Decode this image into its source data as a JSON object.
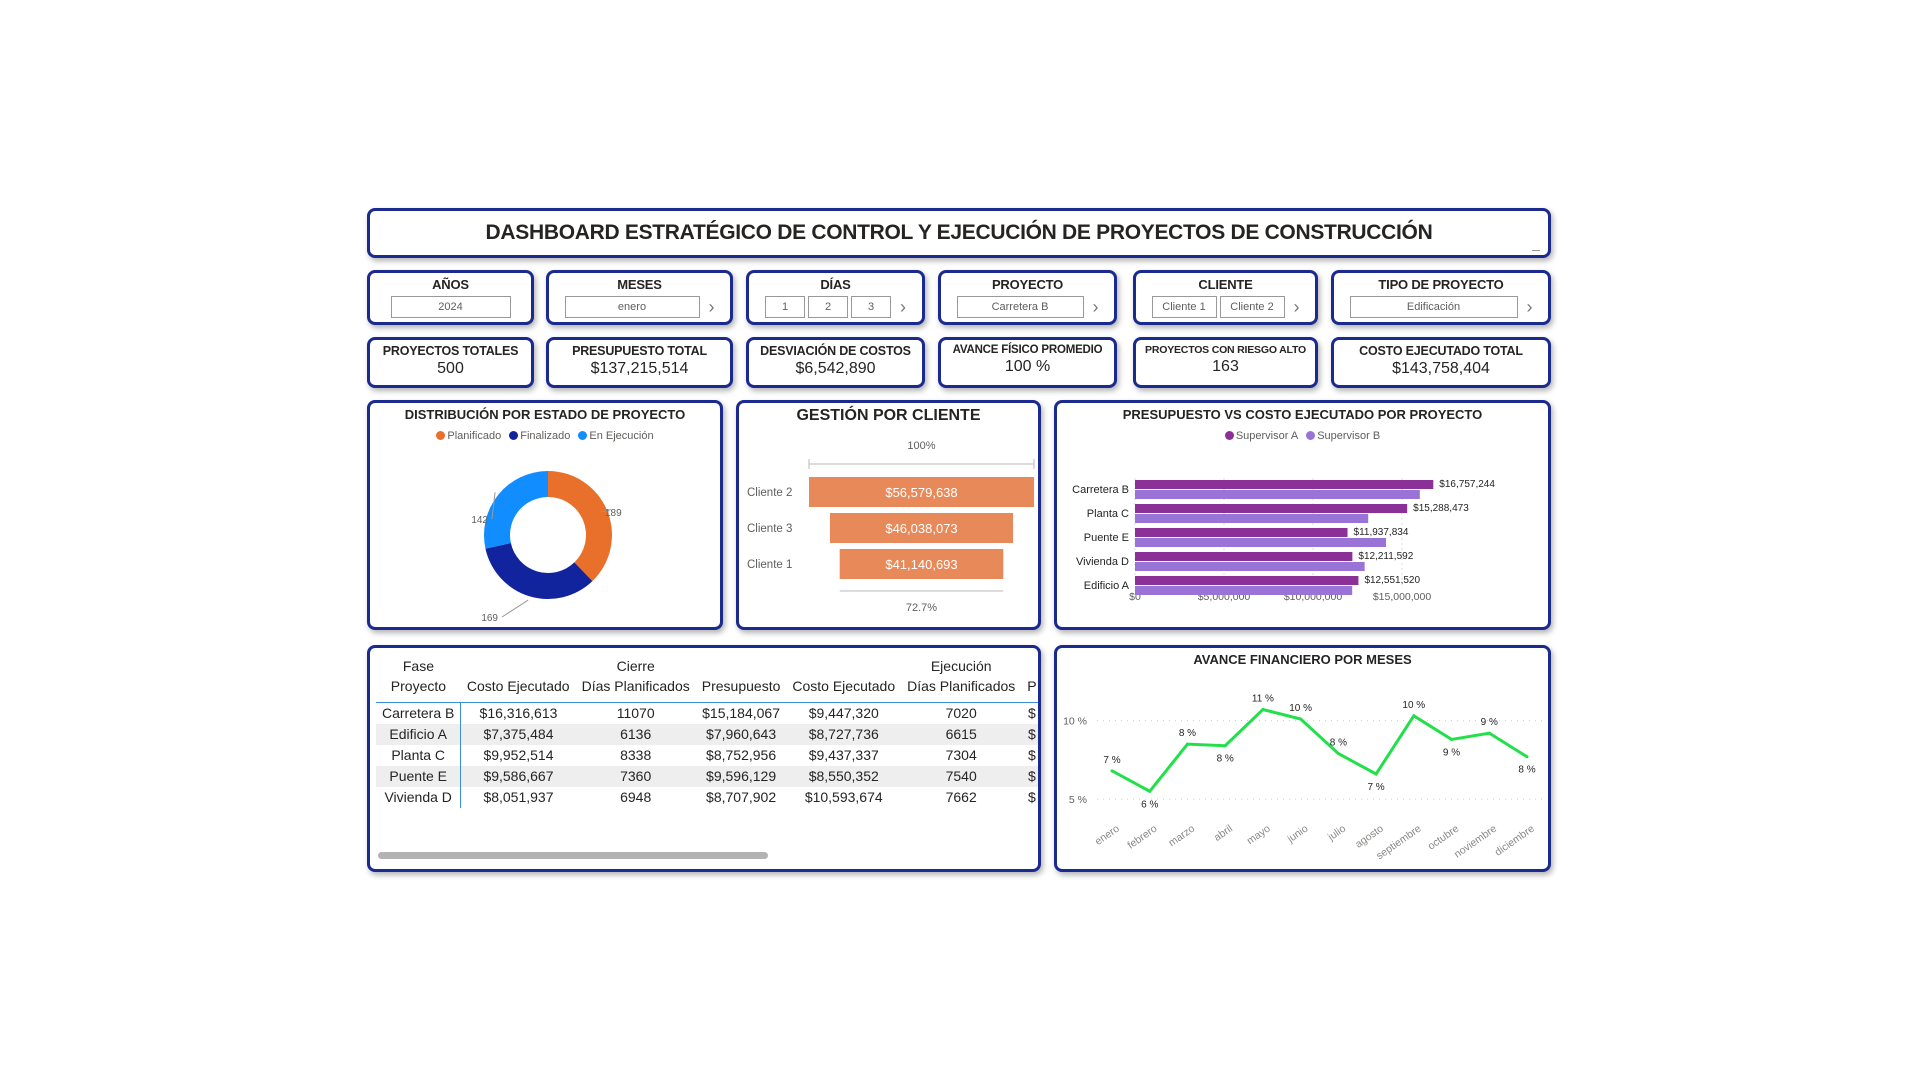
{
  "title": "DASHBOARD ESTRATÉGICO DE CONTROL Y EJECUCIÓN DE PROYECTOS DE CONSTRUCCIÓN",
  "filters": {
    "anos": {
      "label": "AÑOS",
      "value": "2024"
    },
    "meses": {
      "label": "MESES",
      "value": "enero"
    },
    "dias": {
      "label": "DÍAS",
      "values": [
        "1",
        "2",
        "3"
      ]
    },
    "proyecto": {
      "label": "PROYECTO",
      "value": "Carretera B"
    },
    "cliente": {
      "label": "CLIENTE",
      "values": [
        "Cliente 1",
        "Cliente 2"
      ]
    },
    "tipo": {
      "label": "TIPO DE PROYECTO",
      "value": "Edificación"
    }
  },
  "kpis": [
    {
      "label": "PROYECTOS TOTALES",
      "value": "500"
    },
    {
      "label": "PRESUPUESTO TOTAL",
      "value": "$137,215,514"
    },
    {
      "label": "DESVIACIÓN DE COSTOS",
      "value": "$6,542,890"
    },
    {
      "label": "AVANCE FÍSICO PROMEDIO",
      "value": "100 %"
    },
    {
      "label": "PROYECTOS CON RIESGO ALTO",
      "value": "163"
    },
    {
      "label": "COSTO EJECUTADO TOTAL",
      "value": "$143,758,404"
    }
  ],
  "chart_data": [
    {
      "type": "pie",
      "title": "DISTRIBUCIÓN POR ESTADO DE PROYECTO",
      "legend": "top",
      "labels": [
        "Planificado",
        "Finalizado",
        "En Ejecución"
      ],
      "values": [
        189,
        169,
        142
      ],
      "value_labels": [
        "189",
        "169",
        "142"
      ],
      "colors": [
        "#E8702A",
        "#12239E",
        "#118DFF"
      ]
    },
    {
      "type": "bar",
      "subtype": "funnel",
      "title": "GESTIÓN POR CLIENTE",
      "categories": [
        "Cliente 2",
        "Cliente 3",
        "Cliente 1"
      ],
      "values": [
        56579638,
        46038073,
        41140693
      ],
      "value_labels": [
        "$56,579,638",
        "$46,038,073",
        "$41,140,693"
      ],
      "top_label": "100%",
      "bottom_label": "72.7%",
      "color": "#E8895A"
    },
    {
      "type": "bar",
      "orientation": "horizontal",
      "title": "PRESUPUESTO VS COSTO EJECUTADO POR PROYECTO",
      "legend": "top",
      "categories": [
        "Carretera B",
        "Planta C",
        "Puente E",
        "Vivienda D",
        "Edificio A"
      ],
      "series": [
        {
          "name": "Supervisor A",
          "values": [
            16757244,
            15288473,
            11937834,
            12211592,
            12551520
          ],
          "color": "#8A3096",
          "value_labels": [
            "$16,757,244",
            "$15,288,473",
            "$11,937,834",
            "$12,211,592",
            "$12,551,520"
          ]
        },
        {
          "name": "Supervisor B",
          "values": [
            16000000,
            13100000,
            14100000,
            12900000,
            12200000
          ],
          "color": "#9A73D6"
        }
      ],
      "xlim": [
        0,
        20000000
      ],
      "xticks": [
        0,
        5000000,
        10000000,
        15000000
      ],
      "xtick_labels": [
        "$0",
        "$5,000,000",
        "$10,000,000",
        "$15,000,000"
      ],
      "grid": true
    },
    {
      "type": "line",
      "title": "AVANCE FINANCIERO POR MESES",
      "x": [
        "enero",
        "febrero",
        "marzo",
        "abril",
        "mayo",
        "junio",
        "julio",
        "agosto",
        "septiembre",
        "octubre",
        "noviembre",
        "diciembre"
      ],
      "y": [
        6.8,
        5.5,
        8.5,
        8.4,
        10.7,
        10.1,
        7.9,
        6.6,
        10.3,
        8.8,
        9.2,
        7.7
      ],
      "point_labels": [
        "7 %",
        "6 %",
        "8 %",
        "8 %",
        "11 %",
        "10 %",
        "8 %",
        "7 %",
        "10 %",
        "9 %",
        "9 %",
        "8 %"
      ],
      "yticks": [
        5,
        10
      ],
      "ytick_labels": [
        "5 %",
        "10 %"
      ],
      "ylim": [
        3.8,
        12.2
      ],
      "color": "#22E04A",
      "grid": true
    }
  ],
  "table": {
    "group_header_label": "Fase",
    "groups": [
      "Cierre",
      "Ejecución"
    ],
    "columns": [
      "Proyecto",
      "Costo Ejecutado",
      "Días Planificados",
      "Presupuesto",
      "Costo Ejecutado",
      "Días Planificados",
      "P"
    ],
    "rows": [
      [
        "Carretera B",
        "$16,316,613",
        "11070",
        "$15,184,067",
        "$9,447,320",
        "7020",
        "$"
      ],
      [
        "Edificio A",
        "$7,375,484",
        "6136",
        "$7,960,643",
        "$8,727,736",
        "6615",
        "$"
      ],
      [
        "Planta C",
        "$9,952,514",
        "8338",
        "$8,752,956",
        "$9,437,337",
        "7304",
        "$"
      ],
      [
        "Puente E",
        "$9,586,667",
        "7360",
        "$9,596,129",
        "$8,550,352",
        "7540",
        "$"
      ],
      [
        "Vivienda D",
        "$8,051,937",
        "6948",
        "$8,707,902",
        "$10,593,674",
        "7662",
        "$"
      ]
    ]
  }
}
